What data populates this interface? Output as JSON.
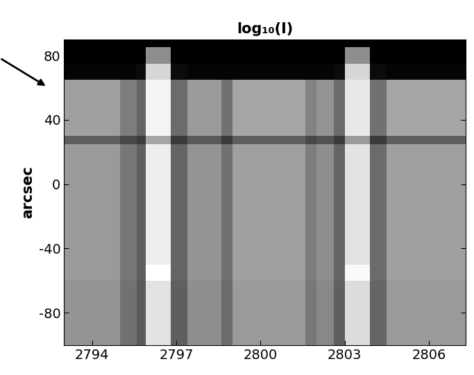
{
  "chart_data": {
    "type": "heatmap",
    "title": "log₁₀(I)",
    "y_label": "arcsec",
    "x_edges": [
      2793.0,
      2795.0,
      2795.6,
      2795.9,
      2796.8,
      2797.4,
      2798.6,
      2799.0,
      2801.6,
      2802.0,
      2802.6,
      2803.0,
      2803.9,
      2804.5,
      2807.3
    ],
    "y_edges": [
      -100,
      -60,
      -50,
      25,
      30,
      65,
      75,
      85,
      90
    ],
    "cells": [
      [
        1.35,
        1.05,
        0.85,
        2.0,
        0.9,
        1.3,
        1.0,
        1.4,
        1.1,
        1.25,
        0.9,
        1.95,
        0.95,
        1.4
      ],
      [
        1.4,
        1.1,
        0.9,
        2.25,
        0.95,
        1.35,
        1.05,
        1.45,
        1.15,
        1.3,
        0.95,
        2.2,
        1.0,
        1.45
      ],
      [
        1.4,
        1.1,
        0.9,
        2.1,
        0.95,
        1.35,
        1.05,
        1.45,
        1.15,
        1.3,
        0.95,
        2.0,
        1.0,
        1.45
      ],
      [
        0.9,
        0.7,
        0.6,
        1.5,
        0.6,
        0.85,
        0.6,
        0.9,
        0.7,
        0.8,
        0.6,
        1.4,
        0.6,
        0.9
      ],
      [
        1.45,
        1.15,
        0.95,
        2.15,
        1.0,
        1.4,
        1.05,
        1.5,
        1.2,
        1.35,
        1.0,
        2.05,
        1.05,
        1.5
      ],
      [
        0.15,
        0.15,
        0.2,
        1.9,
        0.2,
        0.15,
        0.15,
        0.15,
        0.15,
        0.15,
        0.2,
        1.9,
        0.2,
        0.15
      ],
      [
        0.1,
        0.1,
        0.1,
        1.3,
        0.1,
        0.1,
        0.1,
        0.1,
        0.1,
        0.1,
        0.1,
        1.3,
        0.1,
        0.1
      ],
      [
        0.1,
        0.1,
        0.1,
        0.1,
        0.1,
        0.1,
        0.1,
        0.1,
        0.1,
        0.1,
        0.1,
        0.1,
        0.1,
        0.1
      ]
    ],
    "color": "gray",
    "xlim": [
      2793.0,
      2807.3
    ],
    "xticks": [
      2794,
      2797,
      2800,
      2803,
      2806
    ],
    "ylim": [
      -100,
      90
    ],
    "yticks": [
      -80,
      -40,
      0,
      40,
      80
    ],
    "grid": false
  }
}
